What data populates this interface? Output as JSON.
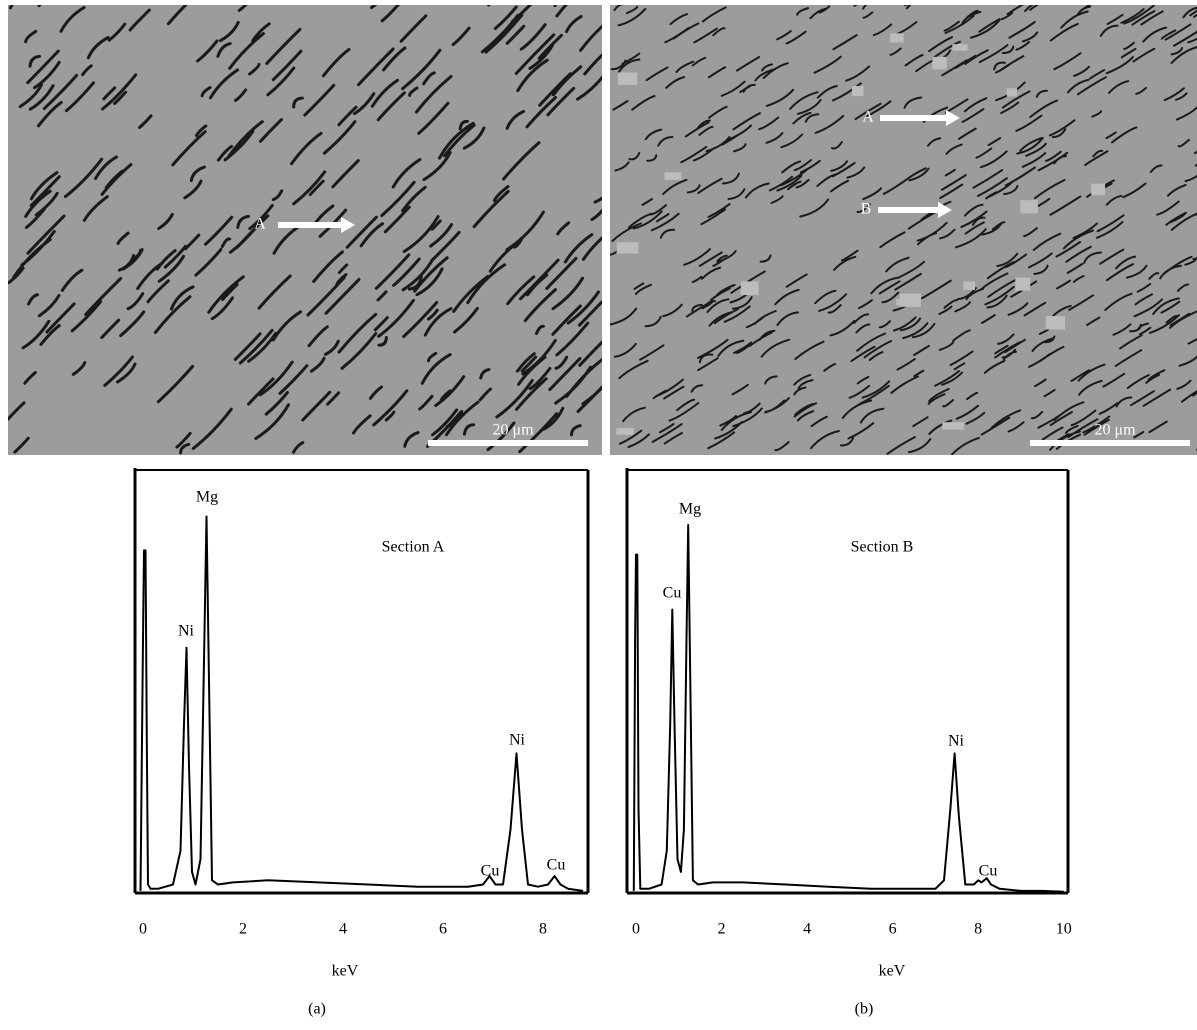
{
  "chart_data": [
    {
      "type": "line",
      "annotation": "Section A",
      "xlabel": "keV",
      "x": [
        -0.05,
        0.0,
        0.02,
        0.05,
        0.08,
        0.1,
        0.15,
        0.3,
        0.6,
        0.75,
        0.82,
        0.87,
        0.92,
        0.98,
        1.05,
        1.15,
        1.22,
        1.27,
        1.32,
        1.38,
        1.5,
        1.8,
        2.5,
        3.5,
        4.5,
        5.5,
        6.5,
        6.8,
        6.93,
        7.05,
        7.2,
        7.35,
        7.47,
        7.58,
        7.7,
        7.9,
        8.1,
        8.23,
        8.35,
        8.5,
        8.8
      ],
      "series": [
        {
          "color": "#000000",
          "values": [
            0.5,
            60,
            81,
            81,
            30,
            2,
            1,
            1,
            2,
            10,
            40,
            58,
            30,
            5,
            2,
            8,
            55,
            89,
            50,
            3,
            2,
            2.5,
            3,
            2.5,
            2,
            1.5,
            1.5,
            2,
            4,
            2,
            2,
            15,
            33,
            15,
            2,
            1.5,
            2,
            4,
            2,
            1,
            0.5
          ]
        }
      ],
      "peak_labels": [
        "Mg",
        "Ni",
        "Ni",
        "Cu",
        "Cu"
      ],
      "xlim": [
        -0.16,
        8.9
      ],
      "xticks": [
        0,
        2,
        4,
        6,
        8
      ],
      "ylim": [
        0,
        100
      ]
    },
    {
      "type": "line",
      "annotation": "Section B",
      "xlabel": "keV",
      "x": [
        -0.05,
        -0.02,
        0.0,
        0.03,
        0.06,
        0.1,
        0.3,
        0.6,
        0.72,
        0.8,
        0.85,
        0.9,
        0.97,
        1.05,
        1.12,
        1.18,
        1.22,
        1.27,
        1.33,
        1.45,
        1.8,
        2.5,
        3.5,
        4.5,
        5.5,
        6.5,
        7.0,
        7.2,
        7.35,
        7.45,
        7.55,
        7.7,
        7.9,
        8.0,
        8.08,
        8.2,
        8.3,
        8.5,
        9.0,
        9.5,
        10
      ],
      "series": [
        {
          "color": "#000000",
          "values": [
            0.5,
            60,
            80,
            80,
            20,
            1,
            1,
            2,
            10,
            40,
            67,
            40,
            8,
            5,
            15,
            60,
            87,
            50,
            3,
            2,
            2.5,
            2.5,
            2,
            1.5,
            1,
            1,
            1,
            3,
            20,
            33,
            18,
            2,
            2,
            3,
            2.5,
            3.5,
            2,
            1,
            0.5,
            0.5,
            0.3
          ]
        }
      ],
      "peak_labels": [
        "Mg",
        "Cu",
        "Ni",
        "Cu"
      ],
      "xlim": [
        -0.21,
        10.1
      ],
      "xticks": [
        0,
        2,
        4,
        6,
        8,
        10
      ],
      "ylim": [
        0,
        100
      ]
    }
  ],
  "micrographs": [
    {
      "points": [
        "A"
      ],
      "scale_bar": "20 μm"
    },
    {
      "points": [
        "A",
        "B"
      ],
      "scale_bar": "20 μm"
    }
  ],
  "panel_labels": [
    "(a)",
    "(b)"
  ]
}
